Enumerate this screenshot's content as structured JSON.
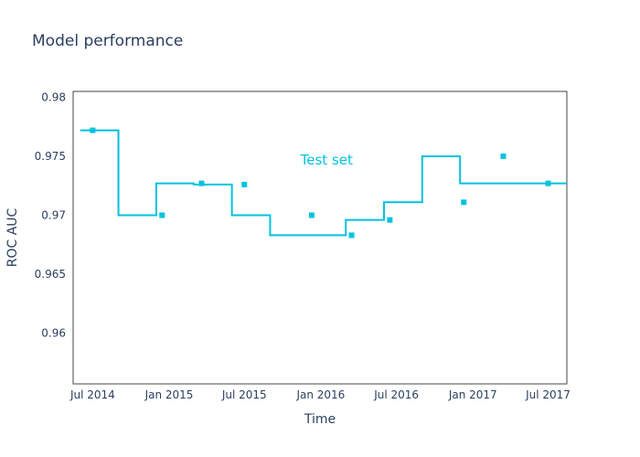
{
  "chart_data": {
    "type": "line",
    "line_shape": "step",
    "title": "Model performance",
    "xlabel": "Time",
    "ylabel": "ROC AUC",
    "x": [
      "2014-06-01",
      "2014-09-01",
      "2014-12-01",
      "2015-03-01",
      "2015-06-01",
      "2015-09-01",
      "2015-12-01",
      "2016-03-01",
      "2016-06-01",
      "2016-09-01",
      "2016-12-01",
      "2017-03-01",
      "2017-06-01"
    ],
    "series": [
      {
        "name": "Test set",
        "values": [
          0.9772,
          0.97,
          0.9727,
          0.9726,
          0.97,
          0.9683,
          0.9683,
          0.9696,
          0.9711,
          0.975,
          0.9727,
          0.9727,
          0.9727
        ],
        "marker_points": [
          {
            "x": "2014-07-01",
            "y": 0.9772
          },
          {
            "x": "2014-12-15",
            "y": 0.97
          },
          {
            "x": "2015-03-20",
            "y": 0.9727
          },
          {
            "x": "2015-07-01",
            "y": 0.9726
          },
          {
            "x": "2015-12-10",
            "y": 0.97
          },
          {
            "x": "2016-03-15",
            "y": 0.9683
          },
          {
            "x": "2016-06-15",
            "y": 0.9696
          },
          {
            "x": "2016-12-10",
            "y": 0.9711
          },
          {
            "x": "2017-03-15",
            "y": 0.975
          },
          {
            "x": "2017-07-01",
            "y": 0.9727
          }
        ]
      }
    ],
    "xlim": [
      "2014-05-15",
      "2017-08-15"
    ],
    "ylim": [
      0.9557,
      0.9805
    ],
    "x_ticks": [
      {
        "value": "2014-07-01",
        "label": "Jul 2014"
      },
      {
        "value": "2015-01-01",
        "label": "Jan 2015"
      },
      {
        "value": "2015-07-01",
        "label": "Jul 2015"
      },
      {
        "value": "2016-01-01",
        "label": "Jan 2016"
      },
      {
        "value": "2016-07-01",
        "label": "Jul 2016"
      },
      {
        "value": "2017-01-01",
        "label": "Jan 2017"
      },
      {
        "value": "2017-07-01",
        "label": "Jul 2017"
      }
    ],
    "y_ticks": [
      {
        "value": 0.96,
        "label": "0.96"
      },
      {
        "value": 0.965,
        "label": "0.965"
      },
      {
        "value": 0.97,
        "label": "0.97"
      },
      {
        "value": 0.975,
        "label": "0.975"
      },
      {
        "value": 0.98,
        "label": "0.98"
      }
    ],
    "annotation": {
      "text": "Test set",
      "x": "2016-01-15",
      "y": 0.9747
    },
    "grid": false,
    "legend": "none",
    "colors": {
      "line": "#00c2e0",
      "frame": "#444444",
      "text": "#2a3f5f"
    }
  }
}
